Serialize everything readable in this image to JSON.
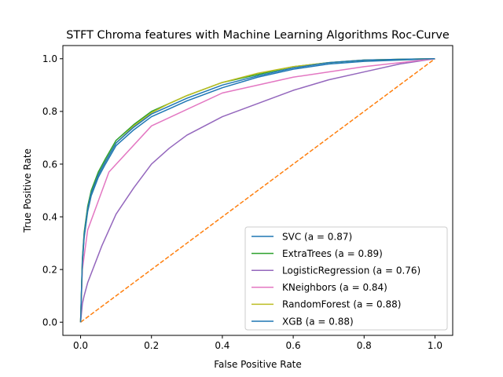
{
  "chart_data": {
    "type": "line",
    "title": "STFT Chroma features with Machine Learning Algorithms Roc-Curve",
    "xlabel": "False Positive Rate",
    "ylabel": "True Positive Rate",
    "xlim": [
      -0.05,
      1.05
    ],
    "ylim": [
      -0.05,
      1.05
    ],
    "xticks": [
      "0.0",
      "0.2",
      "0.4",
      "0.6",
      "0.8",
      "1.0"
    ],
    "yticks": [
      "0.0",
      "0.2",
      "0.4",
      "0.6",
      "0.8",
      "1.0"
    ],
    "grid": false,
    "legend_position": "lower-right",
    "series": [
      {
        "name": "SVC (a = 0.87)",
        "color": "#1f77b4",
        "x": [
          0,
          0.005,
          0.01,
          0.02,
          0.03,
          0.05,
          0.07,
          0.1,
          0.15,
          0.2,
          0.25,
          0.3,
          0.4,
          0.5,
          0.6,
          0.7,
          0.8,
          0.9,
          1.0
        ],
        "y": [
          0,
          0.22,
          0.32,
          0.42,
          0.48,
          0.55,
          0.6,
          0.67,
          0.73,
          0.78,
          0.81,
          0.84,
          0.89,
          0.93,
          0.96,
          0.98,
          0.99,
          0.995,
          1.0
        ]
      },
      {
        "name": "ExtraTrees (a = 0.89)",
        "color": "#2ca02c",
        "x": [
          0,
          0.005,
          0.01,
          0.02,
          0.03,
          0.05,
          0.07,
          0.1,
          0.15,
          0.2,
          0.25,
          0.3,
          0.4,
          0.5,
          0.6,
          0.7,
          0.8,
          0.9,
          1.0
        ],
        "y": [
          0,
          0.24,
          0.34,
          0.44,
          0.5,
          0.57,
          0.62,
          0.69,
          0.75,
          0.8,
          0.83,
          0.86,
          0.91,
          0.94,
          0.97,
          0.985,
          0.995,
          0.998,
          1.0
        ]
      },
      {
        "name": "LogisticRegression (a = 0.76)",
        "color": "#9467bd",
        "x": [
          0,
          0.005,
          0.01,
          0.02,
          0.04,
          0.06,
          0.08,
          0.1,
          0.15,
          0.2,
          0.25,
          0.3,
          0.4,
          0.5,
          0.6,
          0.7,
          0.8,
          0.9,
          1.0
        ],
        "y": [
          0,
          0.07,
          0.1,
          0.15,
          0.22,
          0.29,
          0.35,
          0.41,
          0.51,
          0.6,
          0.66,
          0.71,
          0.78,
          0.83,
          0.88,
          0.92,
          0.95,
          0.98,
          1.0
        ]
      },
      {
        "name": "KNeighbors (a = 0.84)",
        "color": "#e377c2",
        "x": [
          0,
          0.005,
          0.02,
          0.08,
          0.2,
          0.4,
          0.6,
          0.8,
          1.0
        ],
        "y": [
          0,
          0.2,
          0.35,
          0.57,
          0.745,
          0.87,
          0.93,
          0.97,
          1.0
        ]
      },
      {
        "name": "RandomForest (a = 0.88)",
        "color": "#bcbd22",
        "x": [
          0,
          0.005,
          0.01,
          0.02,
          0.03,
          0.05,
          0.07,
          0.1,
          0.15,
          0.2,
          0.25,
          0.3,
          0.4,
          0.5,
          0.6,
          0.7,
          0.8,
          0.9,
          1.0
        ],
        "y": [
          0,
          0.23,
          0.33,
          0.43,
          0.49,
          0.56,
          0.61,
          0.68,
          0.745,
          0.795,
          0.83,
          0.86,
          0.91,
          0.945,
          0.97,
          0.985,
          0.995,
          0.998,
          1.0
        ]
      },
      {
        "name": "XGB (a = 0.88)",
        "color": "#1f77b4",
        "x": [
          0,
          0.005,
          0.01,
          0.02,
          0.03,
          0.05,
          0.07,
          0.1,
          0.15,
          0.2,
          0.25,
          0.3,
          0.4,
          0.5,
          0.6,
          0.7,
          0.8,
          0.9,
          1.0
        ],
        "y": [
          0,
          0.23,
          0.33,
          0.43,
          0.49,
          0.56,
          0.61,
          0.68,
          0.74,
          0.79,
          0.82,
          0.85,
          0.9,
          0.935,
          0.965,
          0.985,
          0.995,
          0.998,
          1.0
        ]
      }
    ],
    "diagonal": {
      "x": [
        0,
        1
      ],
      "y": [
        0,
        1
      ],
      "color": "#ff7f0e",
      "dash": "dashed"
    }
  }
}
